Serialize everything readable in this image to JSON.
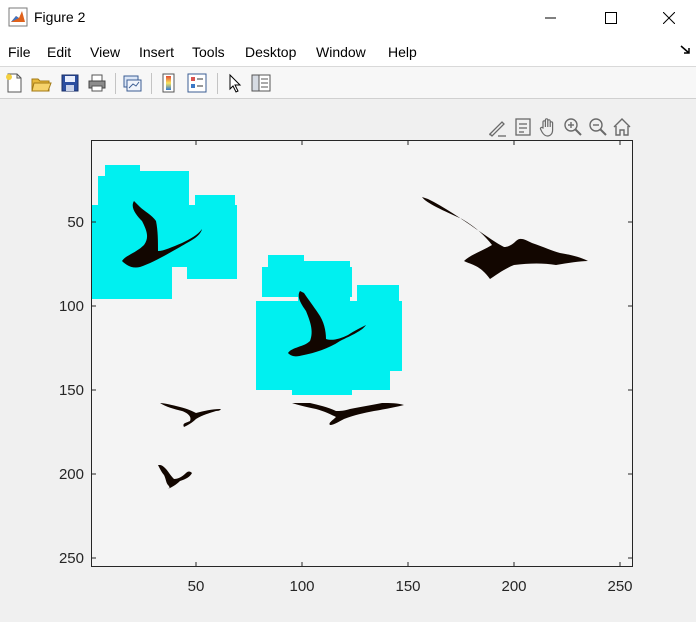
{
  "window": {
    "title": "Figure 2",
    "icon": "matlab-icon",
    "controls": [
      "minimize-icon",
      "maximize-icon",
      "close-icon"
    ]
  },
  "menu": {
    "items": [
      {
        "label": "File"
      },
      {
        "label": "Edit"
      },
      {
        "label": "View"
      },
      {
        "label": "Insert"
      },
      {
        "label": "Tools"
      },
      {
        "label": "Desktop"
      },
      {
        "label": "Window"
      },
      {
        "label": "Help"
      }
    ]
  },
  "toolbar": {
    "buttons": [
      "new-figure-icon",
      "open-file-icon",
      "save-icon",
      "print-icon",
      "link-plot-icon",
      "insert-colorbar-icon",
      "insert-legend-icon",
      "edit-plot-arrow-icon",
      "property-inspector-icon"
    ]
  },
  "axes_toolbar": {
    "buttons": [
      "brush-icon",
      "data-tips-icon",
      "pan-hand-icon",
      "zoom-in-icon",
      "zoom-out-icon",
      "restore-view-home-icon"
    ]
  },
  "plot": {
    "colors": {
      "highlight": "#00f0f0",
      "bird": "#120600",
      "axes_bg": "#f4f4f4"
    },
    "yticks": [
      "50",
      "100",
      "150",
      "200",
      "250"
    ],
    "xticks": [
      "50",
      "100",
      "150",
      "200",
      "250"
    ]
  }
}
